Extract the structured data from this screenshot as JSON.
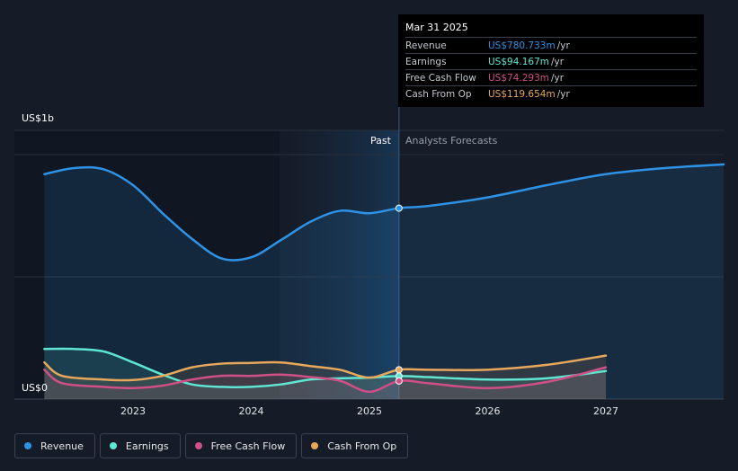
{
  "chart_data": {
    "type": "area",
    "y_top_label": "US$1b",
    "y_bottom_label": "US$0",
    "ylim": [
      0,
      1000
    ],
    "x_ticks": [
      "2023",
      "2024",
      "2025",
      "2026",
      "2027"
    ],
    "past_label": "Past",
    "forecast_label": "Analysts Forecasts",
    "series": [
      {
        "name": "Revenue",
        "color": "#2e93e6",
        "points": [
          [
            2022.25,
            920
          ],
          [
            2022.5,
            945
          ],
          [
            2022.75,
            940
          ],
          [
            2023.0,
            875
          ],
          [
            2023.25,
            760
          ],
          [
            2023.5,
            655
          ],
          [
            2023.75,
            575
          ],
          [
            2024.0,
            580
          ],
          [
            2024.25,
            650
          ],
          [
            2024.5,
            725
          ],
          [
            2024.75,
            770
          ],
          [
            2025.0,
            760
          ],
          [
            2025.25,
            781
          ],
          [
            2025.5,
            790
          ],
          [
            2026.0,
            825
          ],
          [
            2026.5,
            875
          ],
          [
            2027.0,
            920
          ],
          [
            2027.5,
            945
          ],
          [
            2028.0,
            960
          ]
        ]
      },
      {
        "name": "Earnings",
        "color": "#5ee6d2",
        "points": [
          [
            2022.25,
            205
          ],
          [
            2022.5,
            205
          ],
          [
            2022.75,
            195
          ],
          [
            2023.0,
            150
          ],
          [
            2023.25,
            100
          ],
          [
            2023.5,
            60
          ],
          [
            2023.75,
            50
          ],
          [
            2024.0,
            50
          ],
          [
            2024.25,
            60
          ],
          [
            2024.5,
            80
          ],
          [
            2024.75,
            85
          ],
          [
            2025.0,
            88
          ],
          [
            2025.25,
            94
          ],
          [
            2025.5,
            90
          ],
          [
            2026.0,
            80
          ],
          [
            2026.5,
            85
          ],
          [
            2027.0,
            115
          ]
        ]
      },
      {
        "name": "Free Cash Flow",
        "color": "#d04f86",
        "points": [
          [
            2022.25,
            120
          ],
          [
            2022.4,
            65
          ],
          [
            2022.75,
            50
          ],
          [
            2023.0,
            45
          ],
          [
            2023.25,
            55
          ],
          [
            2023.5,
            80
          ],
          [
            2023.75,
            95
          ],
          [
            2024.0,
            95
          ],
          [
            2024.25,
            100
          ],
          [
            2024.5,
            90
          ],
          [
            2024.75,
            75
          ],
          [
            2025.0,
            30
          ],
          [
            2025.25,
            74
          ],
          [
            2025.5,
            65
          ],
          [
            2026.0,
            45
          ],
          [
            2026.5,
            70
          ],
          [
            2027.0,
            130
          ]
        ]
      },
      {
        "name": "Cash From Op",
        "color": "#e8a85c",
        "points": [
          [
            2022.25,
            150
          ],
          [
            2022.4,
            95
          ],
          [
            2022.75,
            80
          ],
          [
            2023.0,
            78
          ],
          [
            2023.25,
            95
          ],
          [
            2023.5,
            130
          ],
          [
            2023.75,
            145
          ],
          [
            2024.0,
            148
          ],
          [
            2024.25,
            150
          ],
          [
            2024.5,
            135
          ],
          [
            2024.75,
            120
          ],
          [
            2025.0,
            88
          ],
          [
            2025.25,
            120
          ],
          [
            2025.5,
            120
          ],
          [
            2026.0,
            120
          ],
          [
            2026.5,
            140
          ],
          [
            2027.0,
            178
          ]
        ]
      }
    ],
    "highlight_x": 2025.25
  },
  "tooltip": {
    "date": "Mar 31 2025",
    "rows": [
      {
        "label": "Revenue",
        "value": "US$780.733m",
        "unit": "/yr",
        "color": "#2e93e6"
      },
      {
        "label": "Earnings",
        "value": "US$94.167m",
        "unit": "/yr",
        "color": "#5ee6d2"
      },
      {
        "label": "Free Cash Flow",
        "value": "US$74.293m",
        "unit": "/yr",
        "color": "#d04f86"
      },
      {
        "label": "Cash From Op",
        "value": "US$119.654m",
        "unit": "/yr",
        "color": "#e8a85c"
      }
    ]
  },
  "legend": [
    {
      "label": "Revenue",
      "color": "#2e93e6"
    },
    {
      "label": "Earnings",
      "color": "#5ee6d2"
    },
    {
      "label": "Free Cash Flow",
      "color": "#d04f86"
    },
    {
      "label": "Cash From Op",
      "color": "#e8a85c"
    }
  ]
}
